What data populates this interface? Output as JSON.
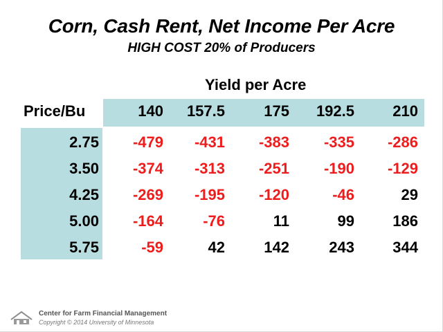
{
  "title": "Corn, Cash Rent, Net Income Per Acre",
  "subtitle": "HIGH COST 20% of Producers",
  "table": {
    "column_group_label": "Yield per Acre",
    "row_header_label": "Price/Bu",
    "columns": [
      "140",
      "157.5",
      "175",
      "192.5",
      "210"
    ],
    "rows": [
      {
        "price": "2.75",
        "values": [
          "-479",
          "-431",
          "-383",
          "-335",
          "-286"
        ]
      },
      {
        "price": "3.50",
        "values": [
          "-374",
          "-313",
          "-251",
          "-190",
          "-129"
        ]
      },
      {
        "price": "4.25",
        "values": [
          "-269",
          "-195",
          "-120",
          "-46",
          "29"
        ]
      },
      {
        "price": "5.00",
        "values": [
          "-164",
          "-76",
          "11",
          "99",
          "186"
        ]
      },
      {
        "price": "5.75",
        "values": [
          "-59",
          "42",
          "142",
          "243",
          "344"
        ]
      }
    ]
  },
  "footer": {
    "organization": "Center for Farm Financial Management",
    "copyright": "Copyright © 2014 University of Minnesota"
  },
  "colors": {
    "accent_band": "#b7dde0",
    "negative_text": "#ee1c1c",
    "positive_text": "#000000"
  },
  "icons": {
    "logo": "cffm-logo-icon"
  }
}
